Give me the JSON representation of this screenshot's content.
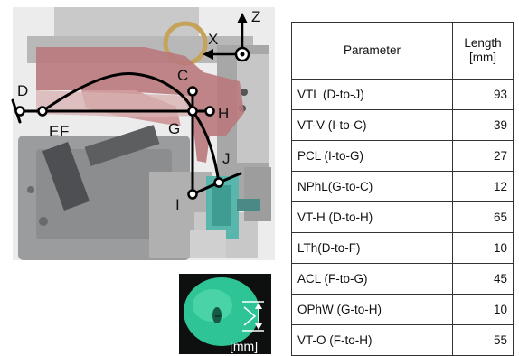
{
  "diagram": {
    "point_labels": [
      "D",
      "E",
      "F",
      "G",
      "C",
      "H",
      "J",
      "I"
    ],
    "axis_labels": {
      "z": "Z",
      "x": "X"
    },
    "inset_unit": "[mm]"
  },
  "table": {
    "headers": {
      "parameter": "Parameter",
      "length_line1": "Length",
      "length_line2": "[mm]"
    },
    "rows": [
      {
        "param": "VTL (D-to-J)",
        "value": "93"
      },
      {
        "param": "VT-V (I-to-C)",
        "value": "39"
      },
      {
        "param": "PCL (I-to-G)",
        "value": "27"
      },
      {
        "param": "NPhL(G-to-C)",
        "value": "12"
      },
      {
        "param": "VT-H (D-to-H)",
        "value": "65"
      },
      {
        "param": "LTh(D-to-F)",
        "value": "10"
      },
      {
        "param": "ACL (F-to-G)",
        "value": "45"
      },
      {
        "param": "OPhW (G-to-H)",
        "value": "10"
      },
      {
        "param": "VT-O (F-to-H)",
        "value": "55"
      }
    ]
  },
  "colors": {
    "anatomy_red": "#b9797c",
    "mechanism_gray": "#8b8d8e",
    "teal_component": "#58b6ad",
    "inset_green": "#2fc496",
    "trace_black": "#000000"
  }
}
